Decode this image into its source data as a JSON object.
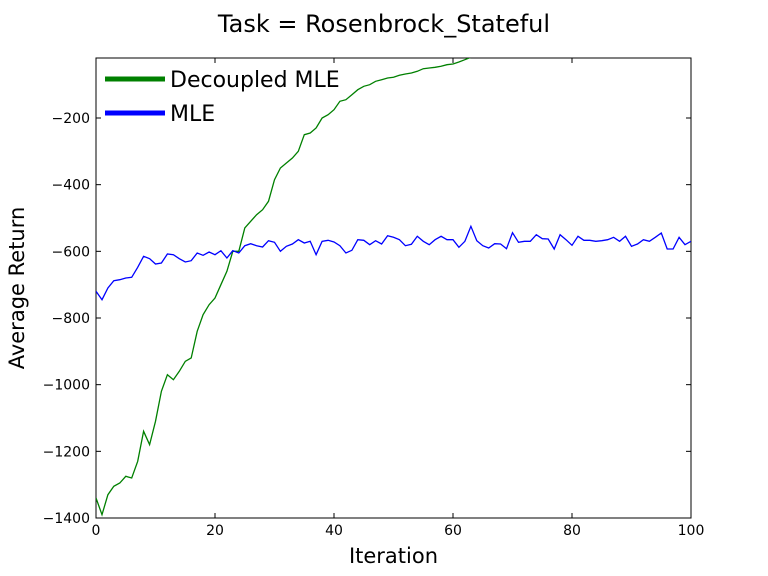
{
  "chart_data": {
    "type": "line",
    "title": "Task = Rosenbrock_Stateful",
    "xlabel": "Iteration",
    "ylabel": "Average Return",
    "xlim": [
      0,
      100
    ],
    "ylim": [
      -1400,
      -20
    ],
    "x_ticks": [
      0,
      20,
      40,
      60,
      80,
      100
    ],
    "x_tick_labels": [
      "0",
      "20",
      "40",
      "60",
      "80",
      "100"
    ],
    "y_ticks": [
      -200,
      -400,
      -600,
      -800,
      -1000,
      -1200,
      -1400
    ],
    "y_tick_labels": [
      "−200",
      "−400",
      "−600",
      "−800",
      "−1000",
      "−1200",
      "−1400"
    ],
    "grid": false,
    "legend_position": "top-left",
    "series": [
      {
        "name": "Decoupled MLE",
        "color": "#008000",
        "x": [
          0,
          1,
          2,
          3,
          4,
          5,
          6,
          7,
          8,
          9,
          10,
          11,
          12,
          13,
          14,
          15,
          16,
          17,
          18,
          19,
          20,
          21,
          22,
          23,
          24,
          25,
          26,
          27,
          28,
          29,
          30,
          31,
          32,
          33,
          34,
          35,
          36,
          37,
          38,
          39,
          40,
          41,
          42,
          43,
          44,
          45,
          46,
          47,
          48,
          49,
          50,
          51,
          52,
          53,
          54,
          55,
          56,
          57,
          58,
          59,
          60,
          61,
          62,
          63
        ],
        "y": [
          -1340,
          -1390,
          -1330,
          -1305,
          -1295,
          -1275,
          -1280,
          -1230,
          -1140,
          -1180,
          -1110,
          -1020,
          -970,
          -985,
          -960,
          -930,
          -920,
          -840,
          -790,
          -760,
          -740,
          -700,
          -660,
          -600,
          -600,
          -530,
          -510,
          -490,
          -475,
          -450,
          -385,
          -350,
          -335,
          -320,
          -300,
          -250,
          -245,
          -230,
          -200,
          -190,
          -175,
          -150,
          -145,
          -130,
          -115,
          -105,
          -100,
          -90,
          -85,
          -80,
          -78,
          -72,
          -68,
          -65,
          -60,
          -52,
          -50,
          -48,
          -45,
          -40,
          -38,
          -32,
          -25,
          -18
        ]
      },
      {
        "name": "MLE",
        "color": "#0000ff",
        "x": [
          0,
          1,
          2,
          3,
          4,
          5,
          6,
          7,
          8,
          9,
          10,
          11,
          12,
          13,
          14,
          15,
          16,
          17,
          18,
          19,
          20,
          21,
          22,
          23,
          24,
          25,
          26,
          27,
          28,
          29,
          30,
          31,
          32,
          33,
          34,
          35,
          36,
          37,
          38,
          39,
          40,
          41,
          42,
          43,
          44,
          45,
          46,
          47,
          48,
          49,
          50,
          51,
          52,
          53,
          54,
          55,
          56,
          57,
          58,
          59,
          60,
          61,
          62,
          63,
          64,
          65,
          66,
          67,
          68,
          69,
          70,
          71,
          72,
          73,
          74,
          75,
          76,
          77,
          78,
          79,
          80,
          81,
          82,
          83,
          84,
          85,
          86,
          87,
          88,
          89,
          90,
          91,
          92,
          93,
          94,
          95,
          96,
          97,
          98,
          99,
          100
        ],
        "y": [
          -720,
          -745,
          -710,
          -688,
          -685,
          -680,
          -678,
          -648,
          -615,
          -622,
          -638,
          -635,
          -608,
          -610,
          -622,
          -632,
          -628,
          -605,
          -612,
          -602,
          -610,
          -598,
          -620,
          -598,
          -605,
          -583,
          -577,
          -583,
          -587,
          -568,
          -573,
          -600,
          -585,
          -578,
          -565,
          -575,
          -570,
          -610,
          -570,
          -567,
          -572,
          -583,
          -605,
          -597,
          -565,
          -567,
          -580,
          -568,
          -578,
          -553,
          -558,
          -565,
          -583,
          -579,
          -555,
          -570,
          -580,
          -565,
          -555,
          -565,
          -565,
          -588,
          -570,
          -525,
          -568,
          -583,
          -590,
          -577,
          -578,
          -592,
          -544,
          -573,
          -570,
          -570,
          -550,
          -562,
          -563,
          -593,
          -550,
          -565,
          -582,
          -555,
          -567,
          -567,
          -570,
          -568,
          -565,
          -558,
          -570,
          -555,
          -585,
          -578,
          -565,
          -570,
          -558,
          -545,
          -593,
          -593,
          -558,
          -580,
          -570
        ]
      }
    ]
  }
}
